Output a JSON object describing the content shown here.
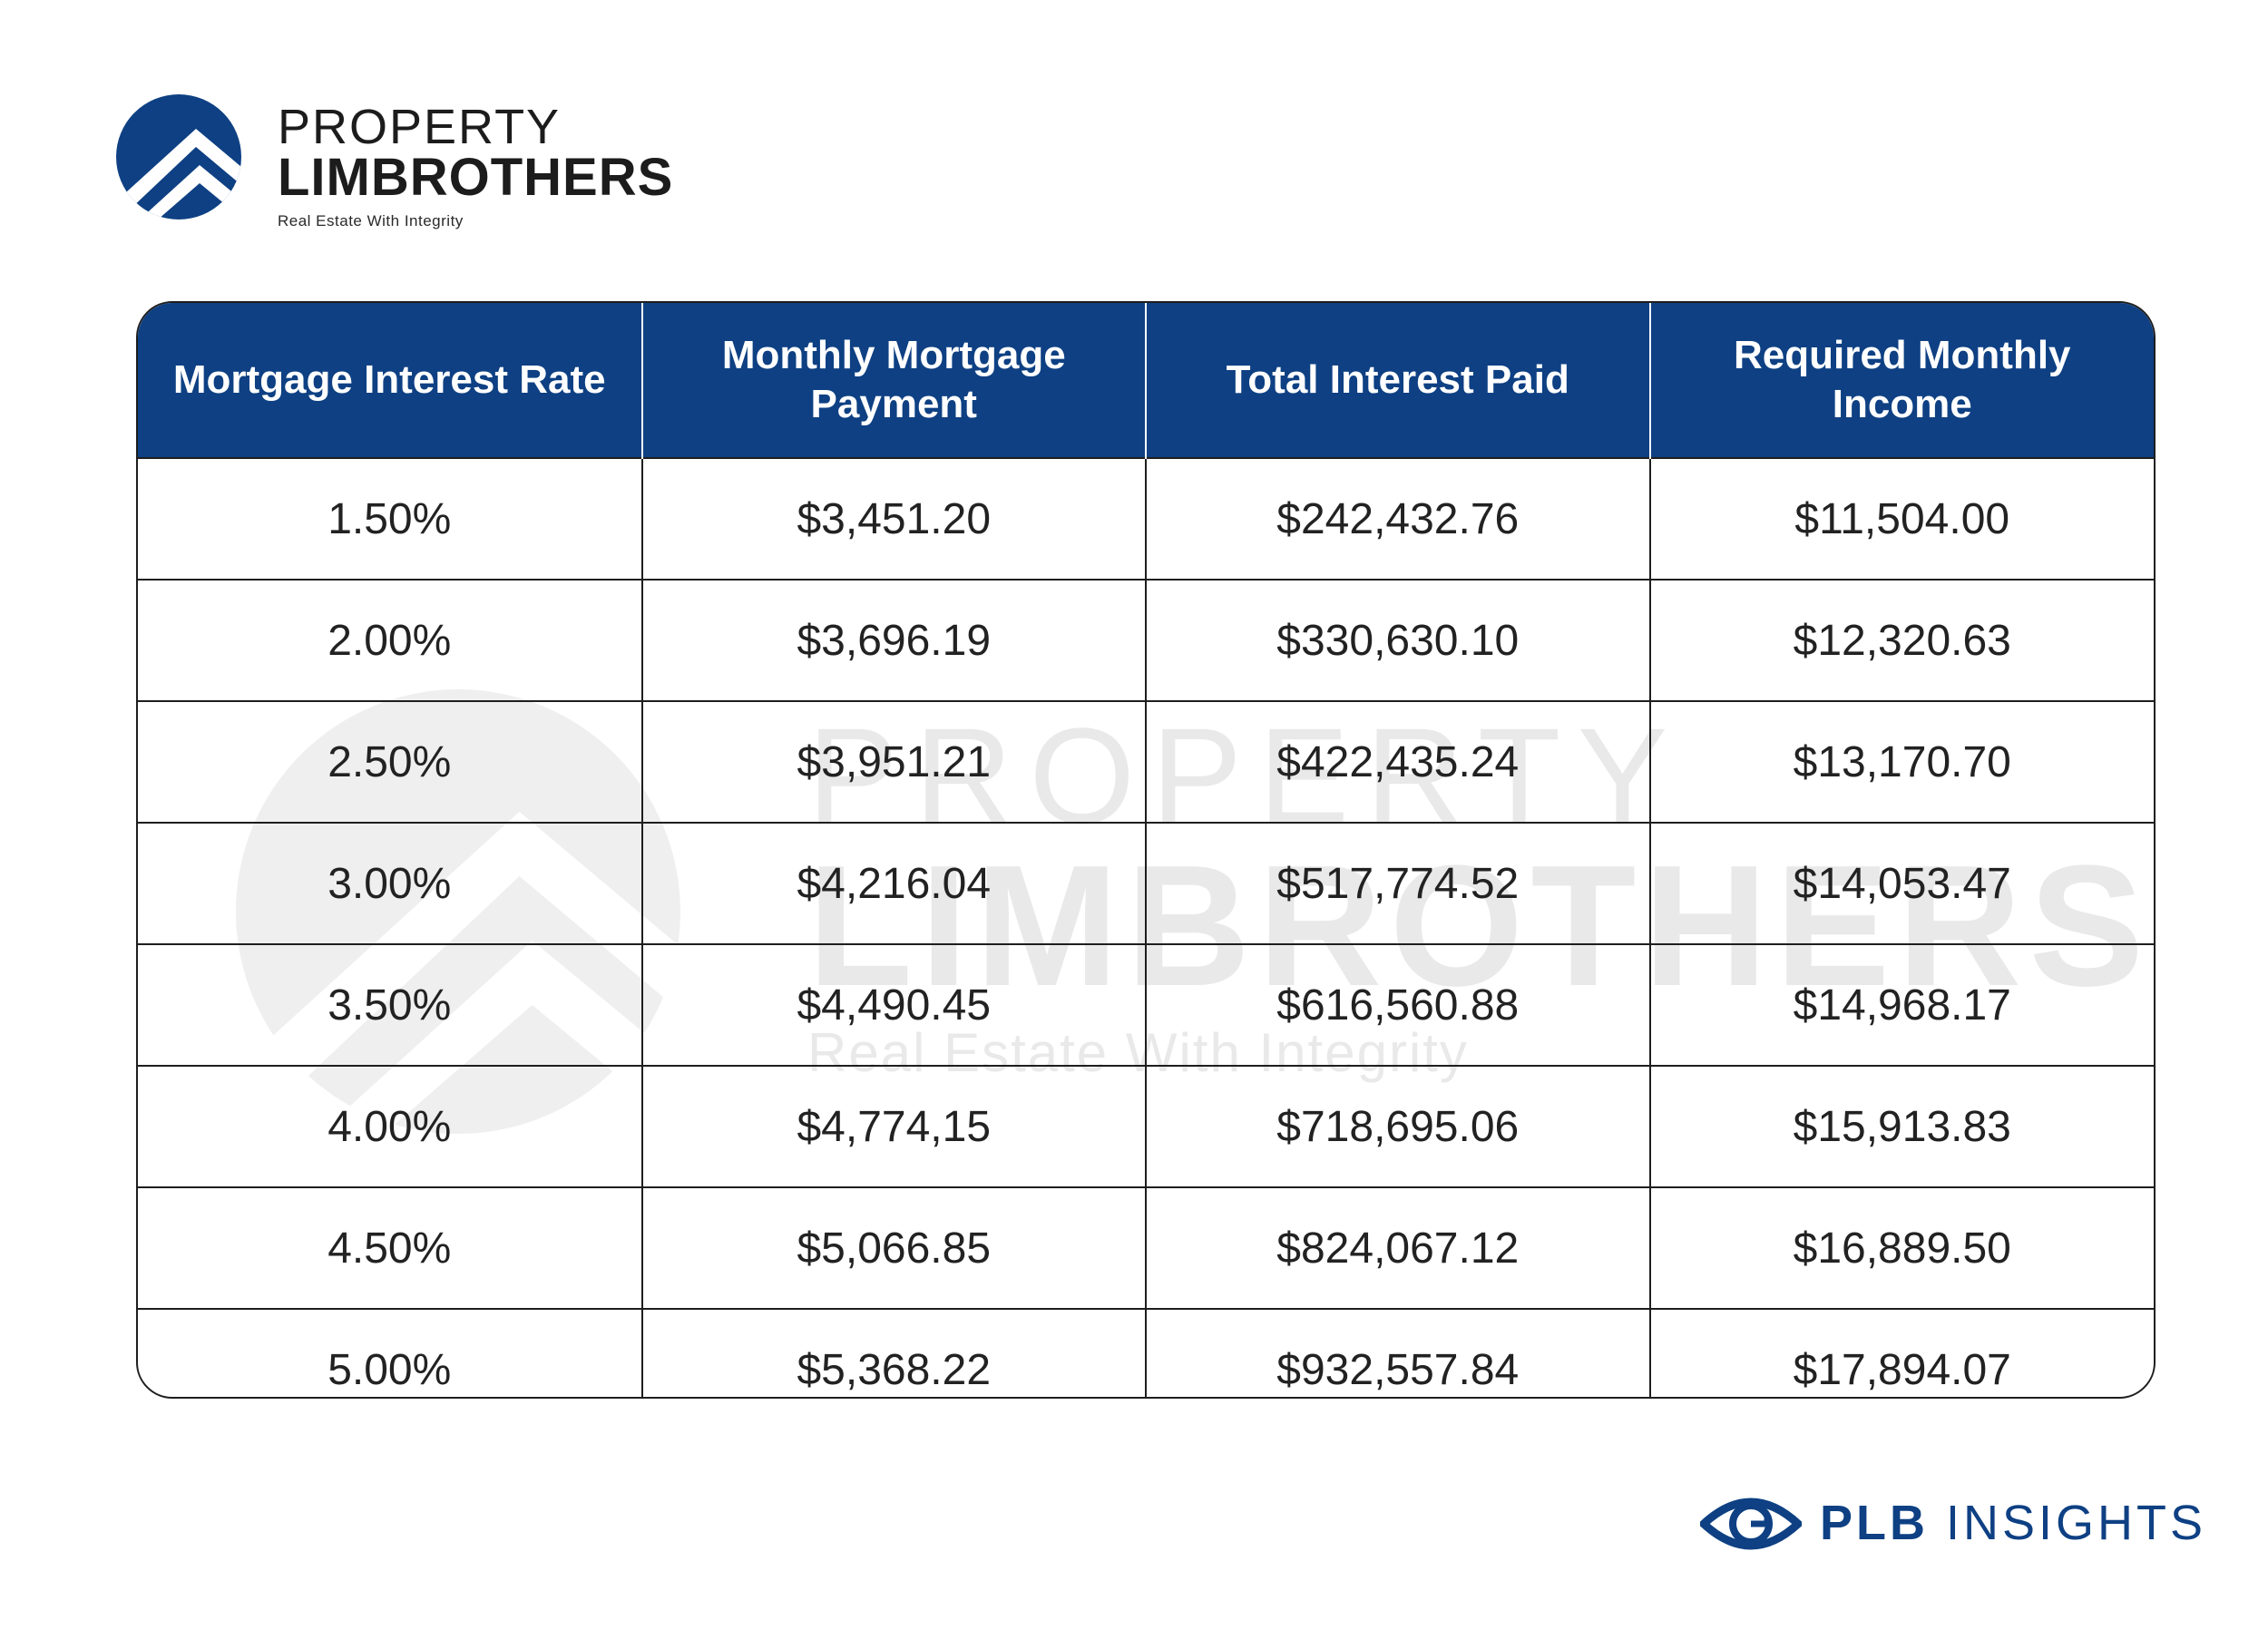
{
  "brand": {
    "line1": "PROPERTY",
    "line2": "LIMBROTHERS",
    "tagline": "Real Estate With Integrity",
    "color": "#0e4083"
  },
  "table": {
    "headers": [
      "Mortgage Interest Rate",
      "Monthly Mortgage Payment",
      "Total Interest Paid",
      "Required Monthly Income"
    ],
    "rows": [
      [
        "1.50%",
        "$3,451.20",
        "$242,432.76",
        "$11,504.00"
      ],
      [
        "2.00%",
        "$3,696.19",
        "$330,630.10",
        "$12,320.63"
      ],
      [
        "2.50%",
        "$3,951.21",
        "$422,435.24",
        "$13,170.70"
      ],
      [
        "3.00%",
        "$4,216.04",
        "$517,774.52",
        "$14,053.47"
      ],
      [
        "3.50%",
        "$4,490.45",
        "$616,560.88",
        "$14,968.17"
      ],
      [
        "4.00%",
        "$4,774,15",
        "$718,695.06",
        "$15,913.83"
      ],
      [
        "4.50%",
        "$5,066.85",
        "$824,067.12",
        "$16,889.50"
      ],
      [
        "5.00%",
        "$5,368.22",
        "$932,557.84",
        "$17,894.07"
      ]
    ],
    "header_color": "#0e4083"
  },
  "footer": {
    "brand_bold": "PLB",
    "brand_rest": "INSIGHTS",
    "icon": "eye-icon"
  }
}
